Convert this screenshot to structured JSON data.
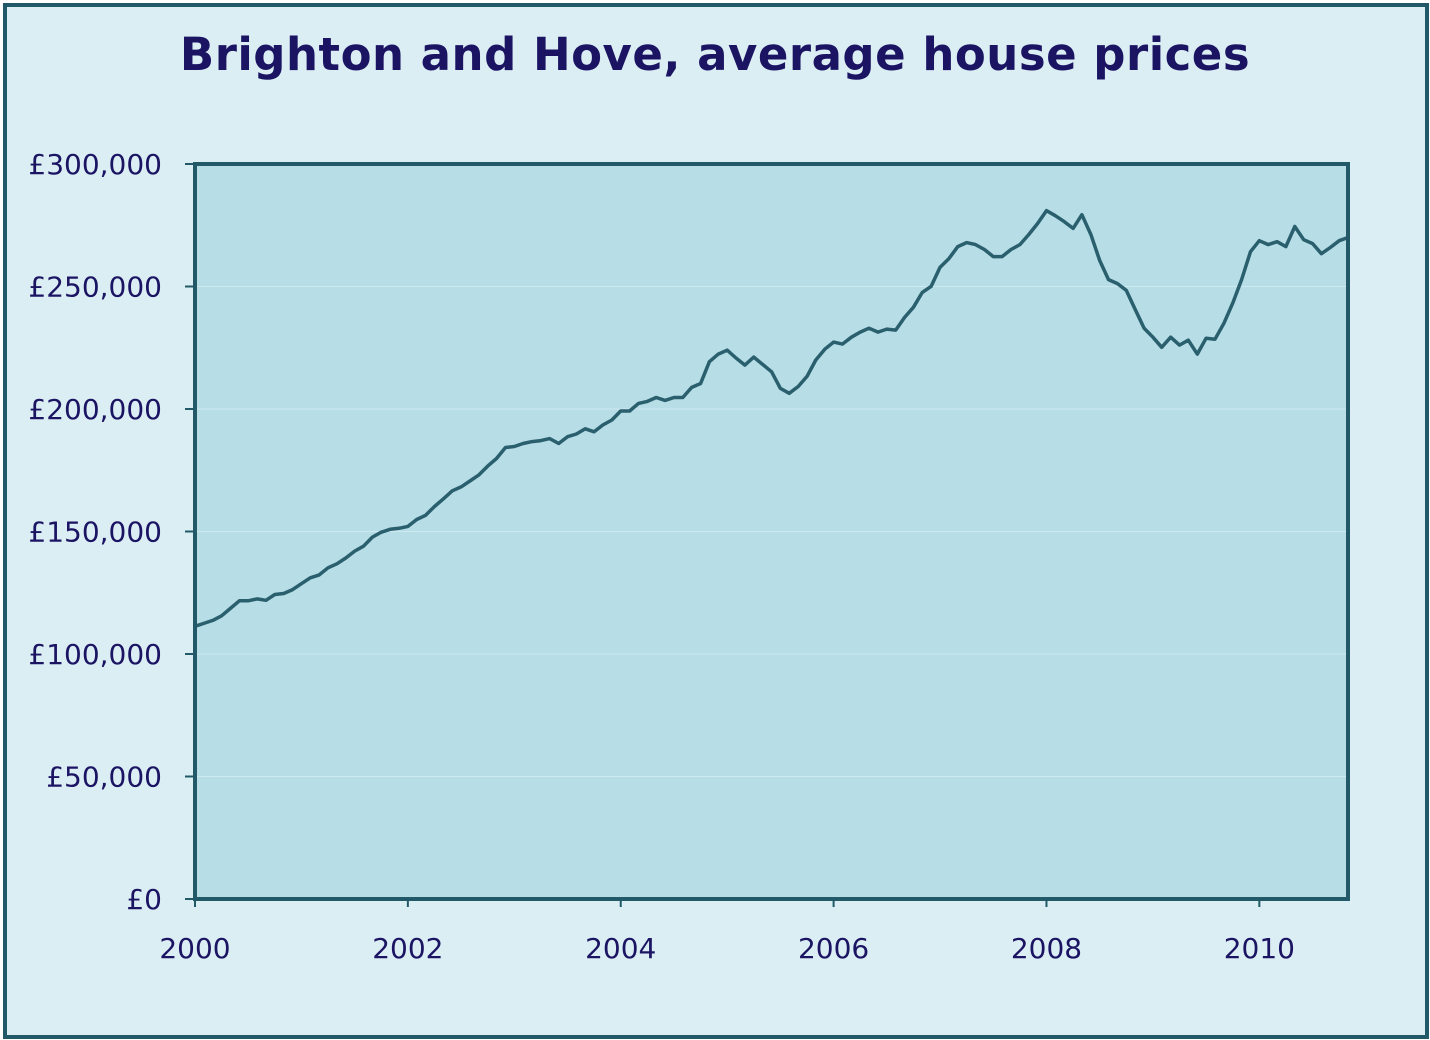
{
  "chart_data": {
    "type": "line",
    "title": "Brighton and Hove, average house prices",
    "xlabel": "",
    "ylabel": "",
    "xlim": [
      2000,
      2010.833
    ],
    "ylim": [
      0,
      300000
    ],
    "grid": true,
    "legend": "none",
    "x_ticks": [
      2000,
      2002,
      2004,
      2006,
      2008,
      2010
    ],
    "x_tick_labels": [
      "2000",
      "2002",
      "2004",
      "2006",
      "2008",
      "2010"
    ],
    "y_ticks": [
      0,
      50000,
      100000,
      150000,
      200000,
      250000,
      300000
    ],
    "y_tick_labels": [
      "£0",
      "£50,000",
      "£100,000",
      "£150,000",
      "£200,000",
      "£250,000",
      "£300,000"
    ],
    "colors": {
      "line": "#2a5f6e",
      "plot_bg": "#b7dde7",
      "frame_bg": "#dbeef4",
      "border": "#215968",
      "text": "#1b1463"
    },
    "series": [
      {
        "points": [
          [
            2000.0,
            111300
          ],
          [
            2000.083,
            112500
          ],
          [
            2000.167,
            113700
          ],
          [
            2000.25,
            115600
          ],
          [
            2000.333,
            118600
          ],
          [
            2000.417,
            121700
          ],
          [
            2000.5,
            121700
          ],
          [
            2000.583,
            122500
          ],
          [
            2000.667,
            121900
          ],
          [
            2000.75,
            124300
          ],
          [
            2000.833,
            124700
          ],
          [
            2000.917,
            126300
          ],
          [
            2001.0,
            128700
          ],
          [
            2001.083,
            131100
          ],
          [
            2001.167,
            132300
          ],
          [
            2001.25,
            135200
          ],
          [
            2001.333,
            136800
          ],
          [
            2001.417,
            139200
          ],
          [
            2001.5,
            142000
          ],
          [
            2001.583,
            144000
          ],
          [
            2001.667,
            147700
          ],
          [
            2001.75,
            149700
          ],
          [
            2001.833,
            150900
          ],
          [
            2001.917,
            151300
          ],
          [
            2002.0,
            152100
          ],
          [
            2002.083,
            154900
          ],
          [
            2002.167,
            156600
          ],
          [
            2002.25,
            160200
          ],
          [
            2002.333,
            163300
          ],
          [
            2002.417,
            166600
          ],
          [
            2002.5,
            168200
          ],
          [
            2002.583,
            170600
          ],
          [
            2002.667,
            173100
          ],
          [
            2002.75,
            176700
          ],
          [
            2002.833,
            179800
          ],
          [
            2002.917,
            184300
          ],
          [
            2003.0,
            184700
          ],
          [
            2003.083,
            185900
          ],
          [
            2003.167,
            186700
          ],
          [
            2003.25,
            187100
          ],
          [
            2003.333,
            187900
          ],
          [
            2003.417,
            185900
          ],
          [
            2003.5,
            188700
          ],
          [
            2003.583,
            189800
          ],
          [
            2003.667,
            191900
          ],
          [
            2003.75,
            190700
          ],
          [
            2003.833,
            193500
          ],
          [
            2003.917,
            195500
          ],
          [
            2004.0,
            199200
          ],
          [
            2004.083,
            199200
          ],
          [
            2004.167,
            202300
          ],
          [
            2004.25,
            203100
          ],
          [
            2004.333,
            204700
          ],
          [
            2004.417,
            203500
          ],
          [
            2004.5,
            204700
          ],
          [
            2004.583,
            204700
          ],
          [
            2004.667,
            208800
          ],
          [
            2004.75,
            210400
          ],
          [
            2004.833,
            219300
          ],
          [
            2004.917,
            222400
          ],
          [
            2005.0,
            224000
          ],
          [
            2005.083,
            220800
          ],
          [
            2005.167,
            217900
          ],
          [
            2005.25,
            221200
          ],
          [
            2005.333,
            218200
          ],
          [
            2005.417,
            215200
          ],
          [
            2005.5,
            208400
          ],
          [
            2005.583,
            206400
          ],
          [
            2005.667,
            209200
          ],
          [
            2005.75,
            213300
          ],
          [
            2005.833,
            220000
          ],
          [
            2005.917,
            224400
          ],
          [
            2006.0,
            227300
          ],
          [
            2006.083,
            226500
          ],
          [
            2006.167,
            229300
          ],
          [
            2006.25,
            231400
          ],
          [
            2006.333,
            233000
          ],
          [
            2006.417,
            231400
          ],
          [
            2006.5,
            232600
          ],
          [
            2006.583,
            232200
          ],
          [
            2006.667,
            237400
          ],
          [
            2006.75,
            241500
          ],
          [
            2006.833,
            247600
          ],
          [
            2006.917,
            250100
          ],
          [
            2007.0,
            257800
          ],
          [
            2007.083,
            261400
          ],
          [
            2007.167,
            266300
          ],
          [
            2007.25,
            267900
          ],
          [
            2007.333,
            267100
          ],
          [
            2007.417,
            265100
          ],
          [
            2007.5,
            262200
          ],
          [
            2007.583,
            262200
          ],
          [
            2007.667,
            265100
          ],
          [
            2007.75,
            267100
          ],
          [
            2007.833,
            271200
          ],
          [
            2007.917,
            275700
          ],
          [
            2008.0,
            281000
          ],
          [
            2008.083,
            278900
          ],
          [
            2008.167,
            276500
          ],
          [
            2008.25,
            273700
          ],
          [
            2008.333,
            279300
          ],
          [
            2008.417,
            271200
          ],
          [
            2008.5,
            260600
          ],
          [
            2008.583,
            252800
          ],
          [
            2008.667,
            251200
          ],
          [
            2008.75,
            248400
          ],
          [
            2008.833,
            240700
          ],
          [
            2008.917,
            233000
          ],
          [
            2009.0,
            229300
          ],
          [
            2009.083,
            225200
          ],
          [
            2009.167,
            229300
          ],
          [
            2009.25,
            226100
          ],
          [
            2009.333,
            228100
          ],
          [
            2009.417,
            222400
          ],
          [
            2009.5,
            228900
          ],
          [
            2009.583,
            228500
          ],
          [
            2009.667,
            235000
          ],
          [
            2009.75,
            243200
          ],
          [
            2009.833,
            252800
          ],
          [
            2009.917,
            264200
          ],
          [
            2010.0,
            268700
          ],
          [
            2010.083,
            267100
          ],
          [
            2010.167,
            268300
          ],
          [
            2010.25,
            266300
          ],
          [
            2010.333,
            274500
          ],
          [
            2010.417,
            269100
          ],
          [
            2010.5,
            267500
          ],
          [
            2010.583,
            263400
          ],
          [
            2010.667,
            265900
          ],
          [
            2010.75,
            268700
          ],
          [
            2010.833,
            270000
          ]
        ]
      }
    ]
  }
}
